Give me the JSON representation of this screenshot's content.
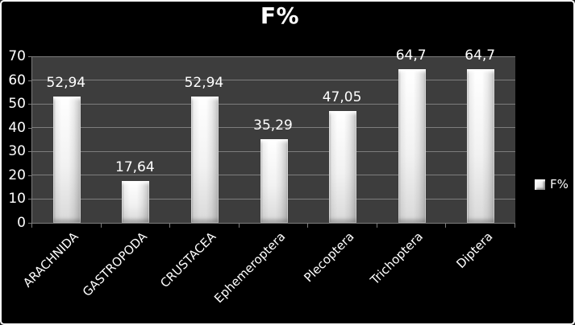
{
  "window": {
    "background_color": "#000000",
    "border_color": "#ffffff"
  },
  "chart_data": {
    "type": "bar",
    "title": "F%",
    "series_name": "F%",
    "categories": [
      "ARACHNIDA",
      "GASTROPODA",
      "CRUSTACEA",
      "Ephemeroptera",
      "Plecoptera",
      "Trichoptera",
      "Diptera"
    ],
    "values": [
      52.94,
      17.64,
      52.94,
      35.29,
      47.05,
      64.7,
      64.7
    ],
    "data_labels": [
      "52,94",
      "17,64",
      "52,94",
      "35,29",
      "47,05",
      "64,7",
      "64,7"
    ],
    "xlabel": "",
    "ylabel": "",
    "ylim": [
      0,
      70
    ],
    "yticks": [
      0,
      10,
      20,
      30,
      40,
      50,
      60,
      70
    ],
    "grid": true,
    "legend_position": "right",
    "colors": {
      "background": "#000000",
      "plot_background": "#3d3d3d",
      "gridline": "#7d7d7d",
      "bar_fill": "#f5f5f5",
      "text": "#ffffff"
    }
  },
  "legend": {
    "label": "F%"
  }
}
